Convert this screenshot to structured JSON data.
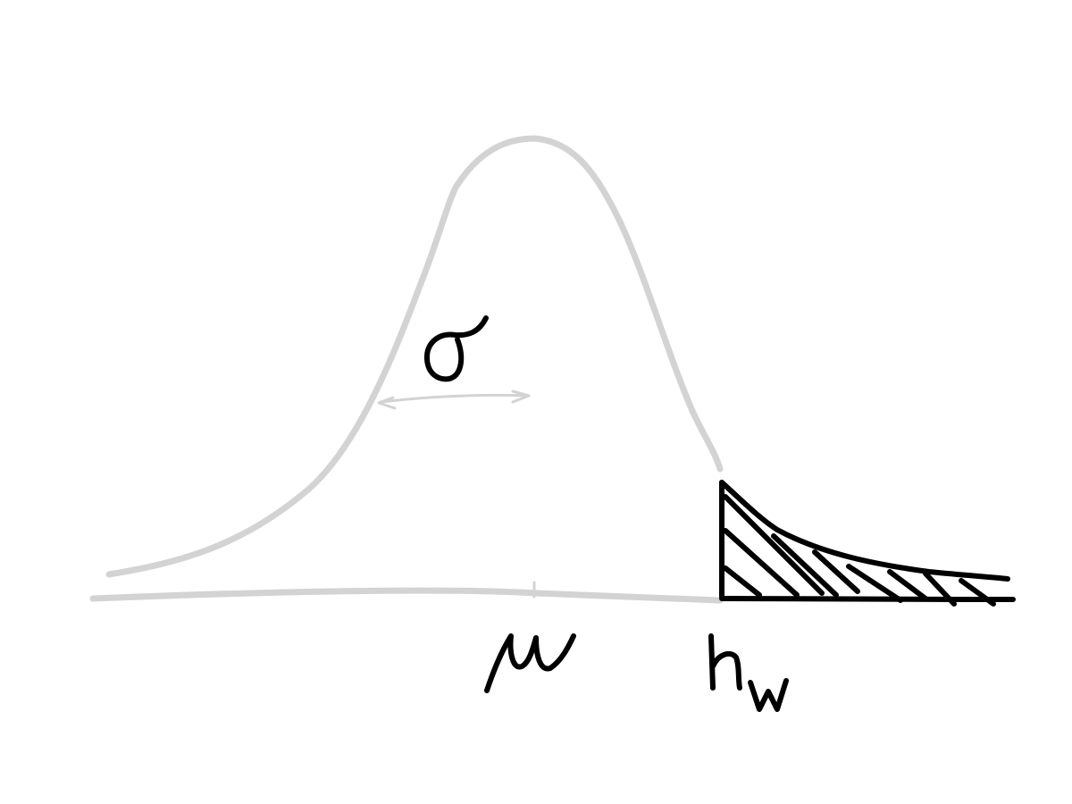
{
  "diagram": {
    "kind": "normal distribution with shaded upper tail",
    "labels": {
      "mean": "μ",
      "std_dev": "σ",
      "threshold_main": "h",
      "threshold_sub": "w"
    },
    "colors": {
      "curve": "#d3d3d3",
      "ink": "#000000",
      "background": "#ffffff"
    }
  }
}
